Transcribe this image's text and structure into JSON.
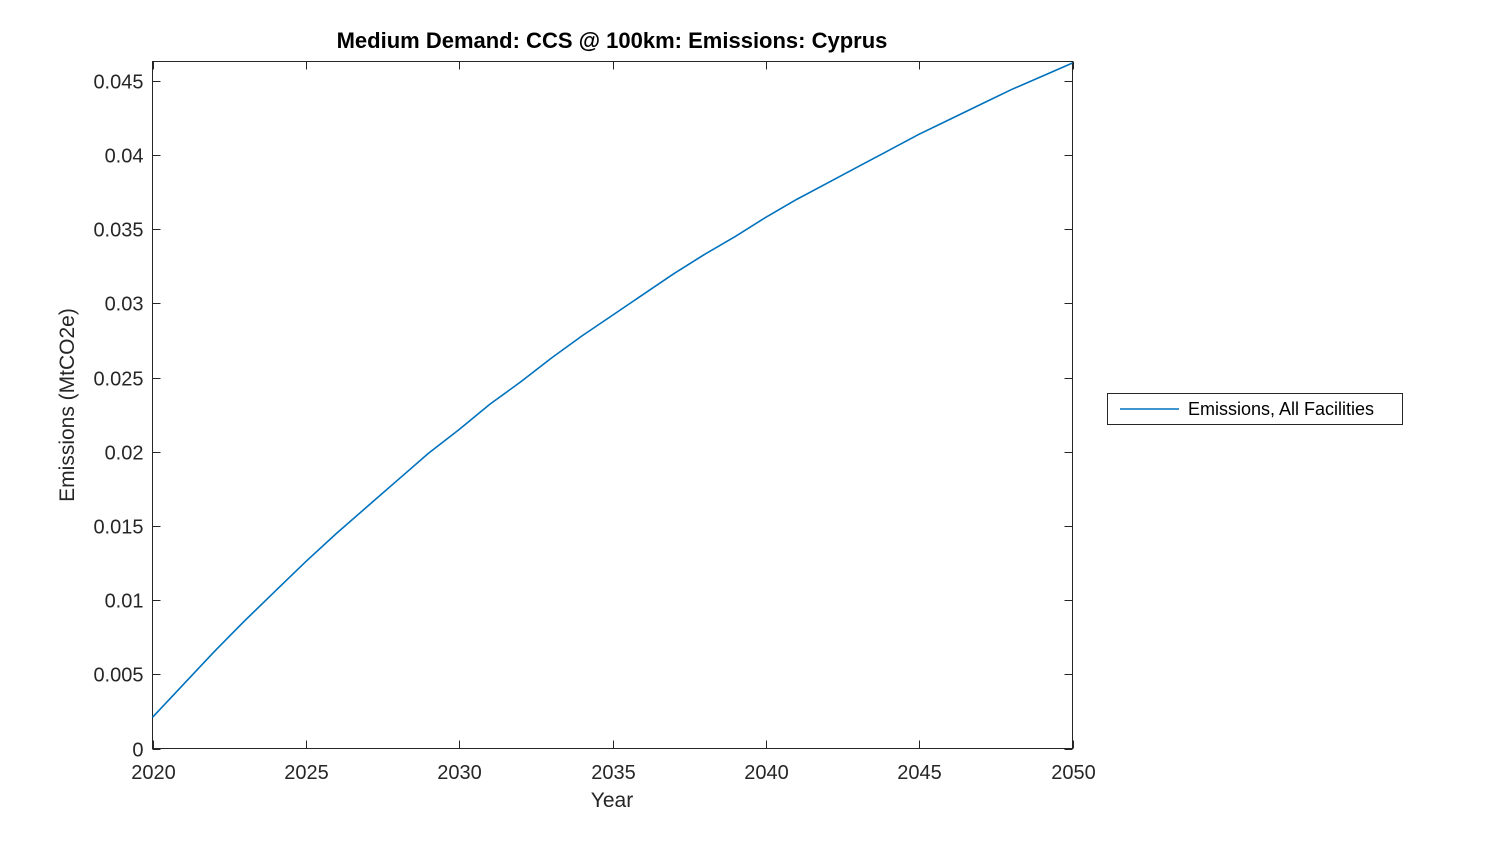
{
  "figure": {
    "title": "Medium Demand: CCS @ 100km: Emissions: Cyprus",
    "xlabel": "Year",
    "ylabel": "Emissions (MtCO2e)"
  },
  "legend": {
    "items": [
      {
        "label": "Emissions, All Facilities",
        "color": "#0072BD"
      }
    ]
  },
  "chart_data": {
    "type": "line",
    "title": "Medium Demand: CCS @ 100km: Emissions: Cyprus",
    "xlabel": "Year",
    "ylabel": "Emissions (MtCO2e)",
    "xlim": [
      2020,
      2050
    ],
    "ylim": [
      0,
      0.0463
    ],
    "x_ticks": [
      "2020",
      "2025",
      "2030",
      "2035",
      "2040",
      "2045",
      "2050"
    ],
    "y_ticks": [
      "0",
      "0.005",
      "0.01",
      "0.015",
      "0.02",
      "0.025",
      "0.03",
      "0.035",
      "0.04",
      "0.045"
    ],
    "grid": false,
    "box": true,
    "legend_position": "outside-right",
    "line_color": "#0072BD",
    "axis_color": "#262626",
    "series": [
      {
        "name": "Emissions, All Facilities",
        "x": [
          2020,
          2021,
          2022,
          2023,
          2024,
          2025,
          2026,
          2027,
          2028,
          2029,
          2030,
          2031,
          2032,
          2033,
          2034,
          2035,
          2036,
          2037,
          2038,
          2039,
          2040,
          2041,
          2042,
          2043,
          2044,
          2045,
          2046,
          2047,
          2048,
          2049,
          2050
        ],
        "values": [
          0.0021,
          0.0043,
          0.0065,
          0.0086,
          0.0106,
          0.0126,
          0.0145,
          0.0163,
          0.0181,
          0.0199,
          0.0215,
          0.0232,
          0.0247,
          0.0263,
          0.0278,
          0.0292,
          0.0306,
          0.032,
          0.0333,
          0.0345,
          0.0358,
          0.037,
          0.0381,
          0.0392,
          0.0403,
          0.0414,
          0.0424,
          0.0434,
          0.0444,
          0.0453,
          0.0462
        ]
      }
    ]
  }
}
